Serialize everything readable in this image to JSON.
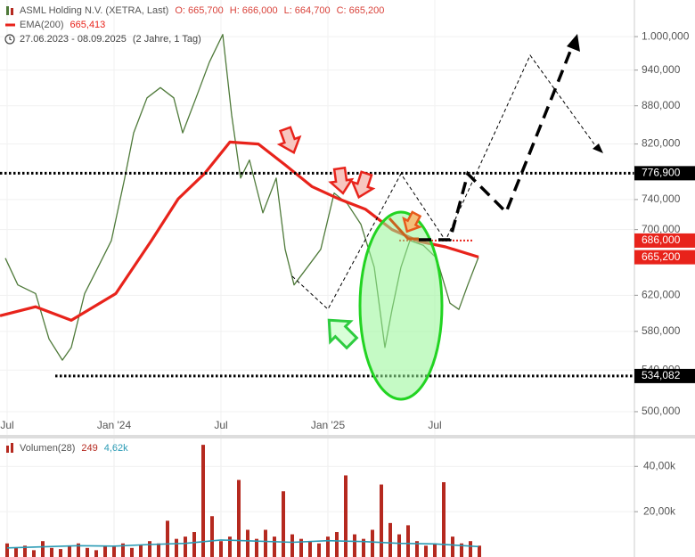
{
  "chart_data": [
    {
      "type": "line",
      "log_scale": true,
      "grid": true,
      "ohlc": [
        "O: 665,700",
        "H: 666,000",
        "L: 664,700",
        "C: 665,200"
      ],
      "period": "27.06.2023 - 08.09.2025",
      "period_note": "(2 Jahre, 1 Tag)",
      "xlim": [
        -0.4,
        35.2
      ],
      "xticks": [
        {
          "value": 0,
          "label": "Jul"
        },
        {
          "value": 6,
          "label": "Jan '24"
        },
        {
          "value": 12,
          "label": "Jul"
        },
        {
          "value": 18,
          "label": "Jan '25"
        },
        {
          "value": 24,
          "label": "Jul"
        }
      ],
      "ylim": [
        479,
        1070
      ],
      "yticks": [
        {
          "value": 500,
          "label": "500,000"
        },
        {
          "value": 540,
          "label": "540,000"
        },
        {
          "value": 580,
          "label": "580,000"
        },
        {
          "value": 620,
          "label": "620,000"
        },
        {
          "value": 700,
          "label": "700,000"
        },
        {
          "value": 740,
          "label": "740,000"
        },
        {
          "value": 820,
          "label": "820,000"
        },
        {
          "value": 880,
          "label": "880,000"
        },
        {
          "value": 940,
          "label": "940,000"
        },
        {
          "value": 1000,
          "label": "1.000,000"
        }
      ],
      "series": [
        {
          "name": "ASML Holding N.V. (XETRA, Last)",
          "color": "#4f7a3a",
          "x": [
            -0.1,
            0.6,
            1.6,
            2.35,
            3.1,
            3.6,
            4.35,
            5.1,
            5.85,
            6.6,
            7.1,
            7.85,
            8.6,
            9.35,
            9.85,
            10.6,
            11.35,
            12.1,
            12.6,
            13.1,
            13.6,
            14.35,
            15.1,
            15.6,
            16.1,
            16.85,
            17.6,
            18.35,
            19.1,
            19.85,
            20.6,
            21.2,
            21.6,
            22.1,
            22.6,
            23.35,
            24.1,
            24.85,
            25.35,
            25.85,
            26.45
          ],
          "values": [
            664,
            632,
            622,
            572,
            550,
            563,
            622,
            653,
            686,
            770,
            837,
            893,
            910,
            893,
            837,
            893,
            954,
            1004,
            865,
            770,
            796,
            722,
            770,
            675,
            632,
            653,
            675,
            749,
            734,
            707,
            653,
            563,
            604,
            653,
            686,
            680,
            664,
            611,
            604,
            632,
            665.2
          ]
        },
        {
          "name": "EMA(200)",
          "color": "#e8231b",
          "legend_value": "665,413",
          "x": [
            -0.4,
            1.6,
            3.6,
            6.1,
            8.1,
            9.6,
            11.1,
            12.5,
            14.1,
            15.6,
            17.1,
            18.6,
            20.1,
            21.6,
            23.1,
            24.6,
            26.45
          ],
          "values": [
            597,
            607,
            592,
            622,
            686,
            741,
            777,
            823,
            820,
            789,
            758,
            741,
            727,
            700,
            685,
            678,
            665.413
          ]
        }
      ],
      "levels": [
        {
          "value": 776.9,
          "label": "776,900",
          "color": "#000000",
          "x_range": [
            -0.4,
            35.2
          ]
        },
        {
          "value": 534.082,
          "label": "534,082",
          "color": "#000000",
          "x_range": [
            2.7,
            35.2
          ]
        },
        {
          "value": 686,
          "label": "686,000",
          "color": "#e8231b",
          "x_range": [
            22.0,
            26.2
          ]
        },
        {
          "value": 665.2,
          "label": "665,200",
          "color": "#e8231b"
        }
      ]
    },
    {
      "type": "bar",
      "xlim": [
        -0.4,
        35.2
      ],
      "ylim": [
        0,
        52300
      ],
      "yticks": [
        {
          "value": 20000,
          "label": "20,00k"
        },
        {
          "value": 40000,
          "label": "40,00k"
        }
      ],
      "series": [
        {
          "name": "Volumen(28)",
          "legend_value": "249",
          "color": "#b5291f",
          "x": [
            0,
            0.5,
            1,
            1.5,
            2,
            2.5,
            3,
            3.5,
            4,
            4.5,
            5,
            5.5,
            6,
            6.5,
            7,
            7.5,
            8,
            8.5,
            9,
            9.5,
            10,
            10.5,
            11,
            11.5,
            12,
            12.5,
            13,
            13.5,
            14,
            14.5,
            15,
            15.5,
            16,
            16.5,
            17,
            17.5,
            18,
            18.5,
            19,
            19.5,
            20,
            20.5,
            21,
            21.5,
            22,
            22.5,
            23,
            23.5,
            24,
            24.5,
            25,
            25.5,
            26,
            26.5
          ],
          "values": [
            6000,
            4000,
            5000,
            3000,
            7000,
            4000,
            3500,
            5000,
            6000,
            4000,
            3000,
            5000,
            4500,
            6000,
            4000,
            5500,
            7000,
            6000,
            16000,
            8000,
            9000,
            11000,
            49500,
            18000,
            7000,
            9000,
            34000,
            12000,
            8000,
            12000,
            9000,
            29000,
            10000,
            8000,
            7000,
            6000,
            9000,
            11000,
            36000,
            10000,
            8000,
            12000,
            32000,
            15000,
            10000,
            14000,
            7000,
            5000,
            6000,
            33000,
            9000,
            6000,
            7000,
            5000
          ]
        },
        {
          "type": "line",
          "color": "#2a9bb5",
          "legend_value": "4,62k",
          "x": [
            0,
            2,
            4,
            6,
            8,
            10,
            12,
            14,
            16,
            18,
            20,
            22,
            24,
            26.45
          ],
          "values": [
            4000,
            4500,
            5000,
            4800,
            5500,
            6000,
            7500,
            7000,
            6500,
            7200,
            6800,
            6000,
            5800,
            4620
          ]
        }
      ]
    }
  ]
}
